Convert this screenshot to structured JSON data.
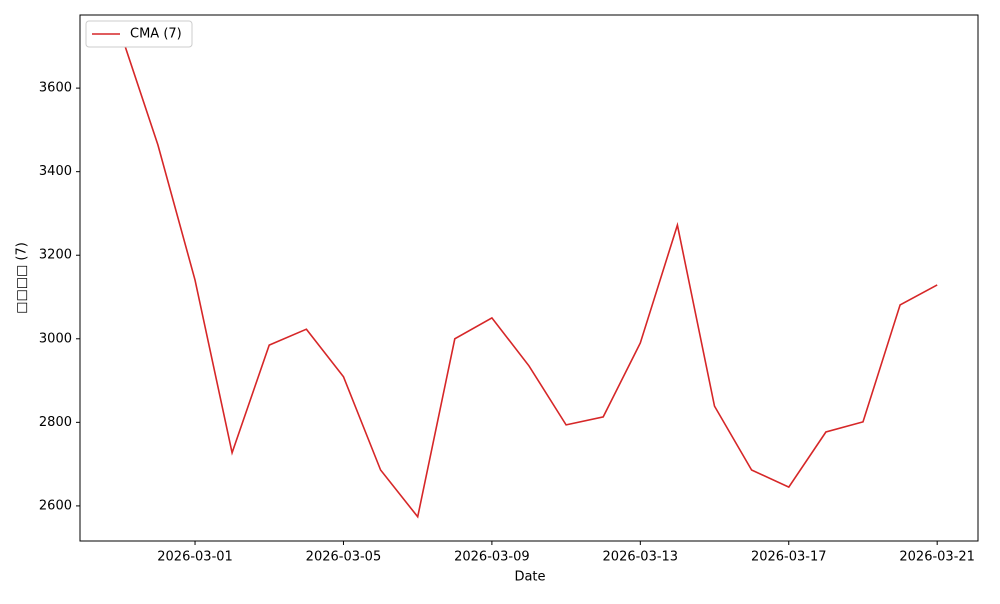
{
  "chart_data": {
    "type": "line",
    "xlabel": "Date",
    "ylabel": "□□□□ (7)",
    "x": [
      "2026-02-27",
      "2026-02-28",
      "2026-03-01",
      "2026-03-02",
      "2026-03-03",
      "2026-03-04",
      "2026-03-05",
      "2026-03-06",
      "2026-03-07",
      "2026-03-08",
      "2026-03-09",
      "2026-03-10",
      "2026-03-11",
      "2026-03-12",
      "2026-03-13",
      "2026-03-14",
      "2026-03-15",
      "2026-03-16",
      "2026-03-17",
      "2026-03-18",
      "2026-03-19",
      "2026-03-20",
      "2026-03-21"
    ],
    "series": [
      {
        "name": "CMA (7)",
        "color": "#d62728",
        "values": [
          3731,
          3464,
          3141,
          2727,
          2985,
          3023,
          2909,
          2686,
          2574,
          3000,
          3050,
          2935,
          2794,
          2813,
          2990,
          3272,
          2839,
          2686,
          2645,
          2777,
          2801,
          3081,
          3129
        ]
      }
    ],
    "xlim": [
      "2026-02-25T21:36",
      "2026-03-22T02:24"
    ],
    "xticks": [
      "2026-03-01",
      "2026-03-05",
      "2026-03-09",
      "2026-03-13",
      "2026-03-17",
      "2026-03-21"
    ],
    "ylim": [
      2516,
      3775
    ],
    "yticks": [
      2600,
      2800,
      3000,
      3200,
      3400,
      3600
    ],
    "grid": false,
    "legend": "upper left"
  }
}
